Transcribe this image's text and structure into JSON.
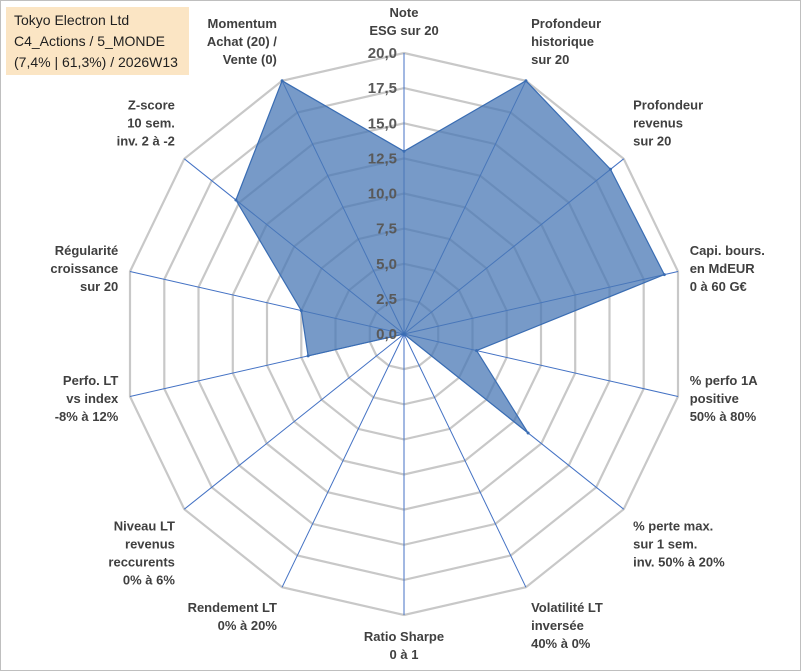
{
  "info": {
    "line1": "Tokyo Electron Ltd",
    "line2": "C4_Actions / 5_MONDE",
    "line3": "(7,4% | 61,3%) / 2026W13"
  },
  "colors": {
    "fill": "#4a78b5",
    "stroke": "#3a6db3",
    "grid": "#c8c8c8",
    "spoke": "#4472c4",
    "info_bg": "#fbe5c4"
  },
  "chart_data": {
    "type": "radar",
    "title": "Tokyo Electron Ltd",
    "r_range": [
      0,
      20
    ],
    "r_ticks": [
      "0,0",
      "2,5",
      "5,0",
      "7,5",
      "10,0",
      "12,5",
      "15,0",
      "17,5",
      "20,0"
    ],
    "axes": [
      {
        "label": [
          "Note",
          "ESG sur 20"
        ],
        "value": 13.0
      },
      {
        "label": [
          "Profondeur",
          "historique",
          "sur 20"
        ],
        "value": 20.0
      },
      {
        "label": [
          "Profondeur",
          "revenus",
          "sur 20"
        ],
        "value": 18.8
      },
      {
        "label": [
          "Capi. bours.",
          "en MdEUR",
          "0 à 60 G€"
        ],
        "value": 19.0
      },
      {
        "label": [
          "% perfo 1A",
          "positive",
          "50% à 80%"
        ],
        "value": 5.3
      },
      {
        "label": [
          "% perte max.",
          "sur 1 sem.",
          "inv. 50% à 20%"
        ],
        "value": 11.3
      },
      {
        "label": [
          "Volatilité LT",
          "inversée",
          "40% à 0%"
        ],
        "value": 0.0
      },
      {
        "label": [
          "Ratio Sharpe",
          "0 à 1"
        ],
        "value": 0.0
      },
      {
        "label": [
          "Rendement LT",
          "0% à 20%"
        ],
        "value": 0.0
      },
      {
        "label": [
          "Niveau LT",
          "revenus",
          "reccurents",
          "0% à 6%"
        ],
        "value": 0.0
      },
      {
        "label": [
          "Perfo. LT",
          "vs index",
          "-8% à 12%"
        ],
        "value": 7.0
      },
      {
        "label": [
          "Régularité",
          "croissance",
          "sur 20"
        ],
        "value": 7.5
      },
      {
        "label": [
          "Z-score",
          "10 sem.",
          "inv. 2 à -2"
        ],
        "value": 15.3
      },
      {
        "label": [
          "Momentum",
          "Achat (20) /",
          "Vente (0)"
        ],
        "value": 20.0
      }
    ]
  }
}
